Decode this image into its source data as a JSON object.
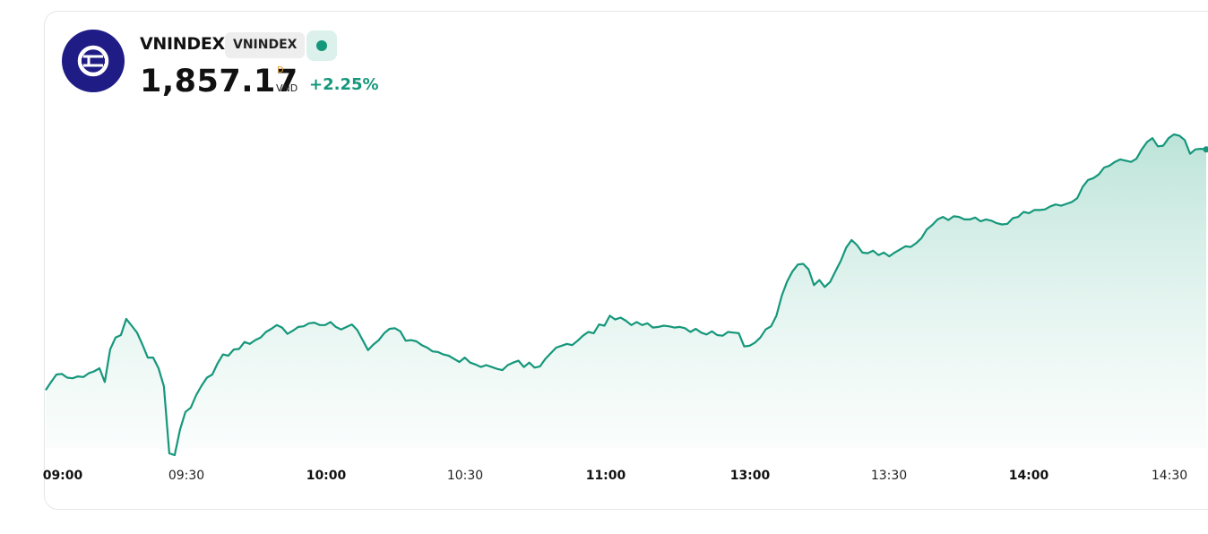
{
  "header": {
    "name": "VNINDEX",
    "badge": "VNINDEX",
    "price": "1,857.17",
    "currency_top": "D",
    "currency": "VND",
    "change": "+2.25%",
    "logo_icon": "exchange-logo-icon",
    "live_icon": "live-status-dot-icon"
  },
  "colors": {
    "line": "#15977b",
    "fill": "#c7e9df",
    "logo_bg": "#1f1c86",
    "positive": "#15977b"
  },
  "chart_data": {
    "type": "area",
    "title": "",
    "xlabel": "",
    "ylabel": "",
    "grid": false,
    "x_ticks": [
      {
        "label": "09:00",
        "major": true
      },
      {
        "label": "09:30",
        "major": false
      },
      {
        "label": "10:00",
        "major": true
      },
      {
        "label": "10:30",
        "major": false
      },
      {
        "label": "11:00",
        "major": true
      },
      {
        "label": "13:00",
        "major": true
      },
      {
        "label": "13:30",
        "major": false
      },
      {
        "label": "14:00",
        "major": true
      },
      {
        "label": "14:30",
        "major": false
      }
    ],
    "series": [
      {
        "values": [
          1818.6,
          1819.9,
          1821.1,
          1821.2,
          1820.6,
          1820.5,
          1820.8,
          1820.7,
          1821.3,
          1821.6,
          1822.1,
          1819.9,
          1825.1,
          1827.0,
          1827.4,
          1830.0,
          1828.9,
          1827.8,
          1825.9,
          1823.8,
          1823.8,
          1822.1,
          1819.2,
          1808.5,
          1808.2,
          1812.3,
          1815.1,
          1815.8,
          1817.8,
          1819.3,
          1820.6,
          1821.1,
          1822.9,
          1824.3,
          1824.1,
          1825.1,
          1825.2,
          1826.3,
          1826.0,
          1826.6,
          1827.0,
          1827.9,
          1828.4,
          1829.0,
          1828.6,
          1827.6,
          1828.1,
          1828.7,
          1828.8,
          1829.3,
          1829.4,
          1829.0,
          1829.0,
          1829.5,
          1828.7,
          1828.3,
          1828.7,
          1829.1,
          1828.2,
          1826.6,
          1825.0,
          1825.9,
          1826.6,
          1827.7,
          1828.4,
          1828.5,
          1828.0,
          1826.5,
          1826.6,
          1826.4,
          1825.8,
          1825.4,
          1824.8,
          1824.7,
          1824.3,
          1824.1,
          1823.6,
          1823.1,
          1823.8,
          1823.0,
          1822.7,
          1822.3,
          1822.6,
          1822.3,
          1822.0,
          1821.8,
          1822.6,
          1823.0,
          1823.3,
          1822.3,
          1823.0,
          1822.2,
          1822.4,
          1823.6,
          1824.5,
          1825.4,
          1825.7,
          1826.0,
          1825.8,
          1826.5,
          1827.3,
          1827.9,
          1827.7,
          1829.1,
          1828.9,
          1830.5,
          1829.9,
          1830.2,
          1829.7,
          1829.0,
          1829.5,
          1829.0,
          1829.3,
          1828.6,
          1828.7,
          1828.9,
          1828.8,
          1828.6,
          1828.7,
          1828.5,
          1827.9,
          1828.4,
          1827.8,
          1827.5,
          1828.0,
          1827.4,
          1827.3,
          1827.9,
          1827.8,
          1827.7,
          1825.6,
          1825.7,
          1826.2,
          1827.0,
          1828.3,
          1828.8,
          1830.5,
          1833.7,
          1836.0,
          1837.6,
          1838.7,
          1838.8,
          1837.9,
          1835.4,
          1836.2,
          1835.1,
          1835.9,
          1837.6,
          1839.3,
          1841.4,
          1842.6,
          1841.8,
          1840.6,
          1840.5,
          1840.9,
          1840.2,
          1840.6,
          1840.0,
          1840.6,
          1841.1,
          1841.6,
          1841.5,
          1842.1,
          1842.9,
          1844.3,
          1845.0,
          1845.9,
          1846.3,
          1845.8,
          1846.4,
          1846.3,
          1845.9,
          1845.9,
          1846.2,
          1845.6,
          1845.9,
          1845.7,
          1845.3,
          1845.1,
          1845.2,
          1846.1,
          1846.3,
          1847.1,
          1846.9,
          1847.4,
          1847.4,
          1847.5,
          1848.0,
          1848.3,
          1848.1,
          1848.4,
          1848.7,
          1849.3,
          1851.1,
          1852.2,
          1852.5,
          1853.1,
          1854.2,
          1854.5,
          1855.1,
          1855.5,
          1855.3,
          1855.1,
          1855.6,
          1857.1,
          1858.3,
          1858.9,
          1857.6,
          1857.7,
          1858.9,
          1859.5,
          1859.3,
          1858.6,
          1856.4,
          1857.1,
          1857.2,
          1857.1
        ],
        "note_ignored": ""
      }
    ]
  }
}
